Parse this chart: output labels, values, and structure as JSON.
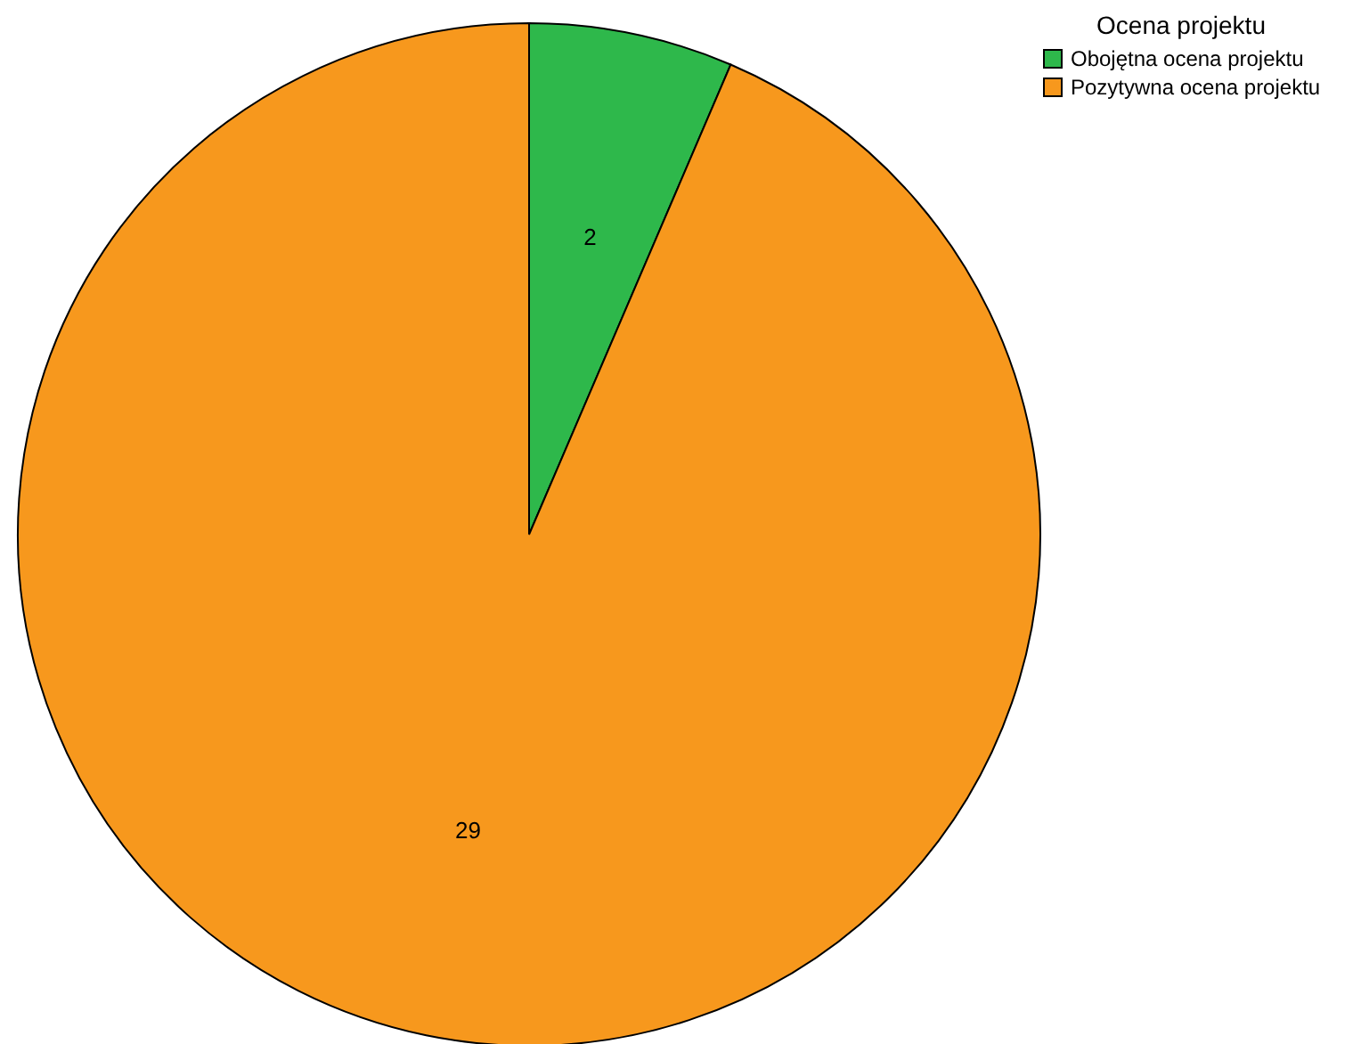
{
  "chart_data": {
    "type": "pie",
    "legend_title": "Ocena projektu",
    "legend": "top right",
    "data_labels": true,
    "categories": [
      "Obojętna ocena projektu",
      "Pozytywna ocena projektu"
    ],
    "values": [
      2,
      29
    ],
    "colors": [
      "#2eb84b",
      "#f7981d"
    ]
  }
}
